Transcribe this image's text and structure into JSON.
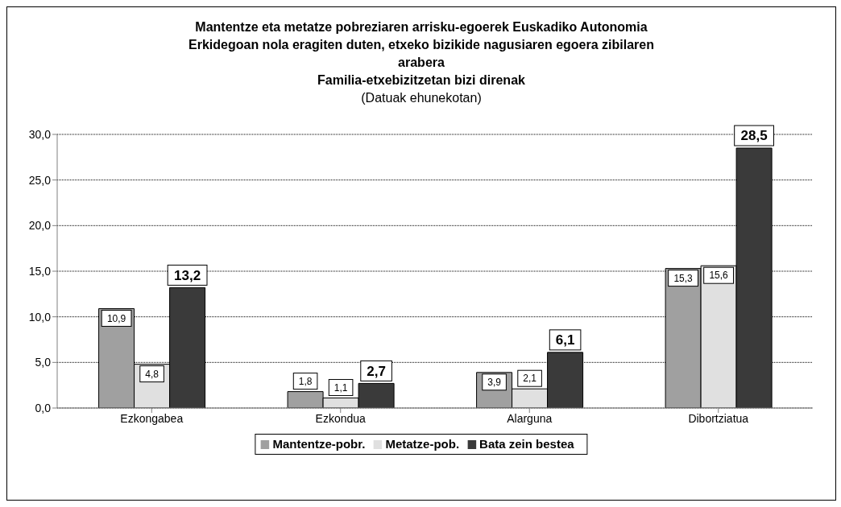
{
  "chart_data": {
    "type": "bar",
    "title": "Mantentze eta metatze pobreziaren arrisku-egoerek Euskadiko Autonomia Erkidegoan nola eragiten duten, etxeko bizikide nagusiaren egoera zibilaren arabera",
    "subtitle": "Familia-etxebizitzetan bizi direnak",
    "annotations": [
      "(Datuak ehunekotan)"
    ],
    "categories": [
      "Ezkongabea",
      "Ezkondua",
      "Alarguna",
      "Dibortziatua"
    ],
    "series": [
      {
        "name": "Mantentze-pobr.",
        "color": "#a0a0a0",
        "values": [
          10.9,
          1.8,
          3.9,
          15.3
        ],
        "value_labels": [
          "10,9",
          "1,8",
          "3,9",
          "15,3"
        ]
      },
      {
        "name": "Metatze-pob.",
        "color": "#e0e0e0",
        "values": [
          4.8,
          1.1,
          2.1,
          15.6
        ],
        "value_labels": [
          "4,8",
          "1,1",
          "2,1",
          "15,6"
        ]
      },
      {
        "name": "Bata zein bestea",
        "color": "#3a3a3a",
        "values": [
          13.2,
          2.7,
          6.1,
          28.5
        ],
        "value_labels": [
          "13,2",
          "2,7",
          "6,1",
          "28,5"
        ]
      }
    ],
    "ylim": [
      0,
      30
    ],
    "yticks": [
      {
        "value": 0,
        "label": "0,0"
      },
      {
        "value": 5,
        "label": "5,0"
      },
      {
        "value": 10,
        "label": "10,0"
      },
      {
        "value": 15,
        "label": "15,0"
      },
      {
        "value": 20,
        "label": "20,0"
      },
      {
        "value": 25,
        "label": "25,0"
      },
      {
        "value": 30,
        "label": "30,0"
      }
    ],
    "grid": "y",
    "legend": "bottom"
  }
}
